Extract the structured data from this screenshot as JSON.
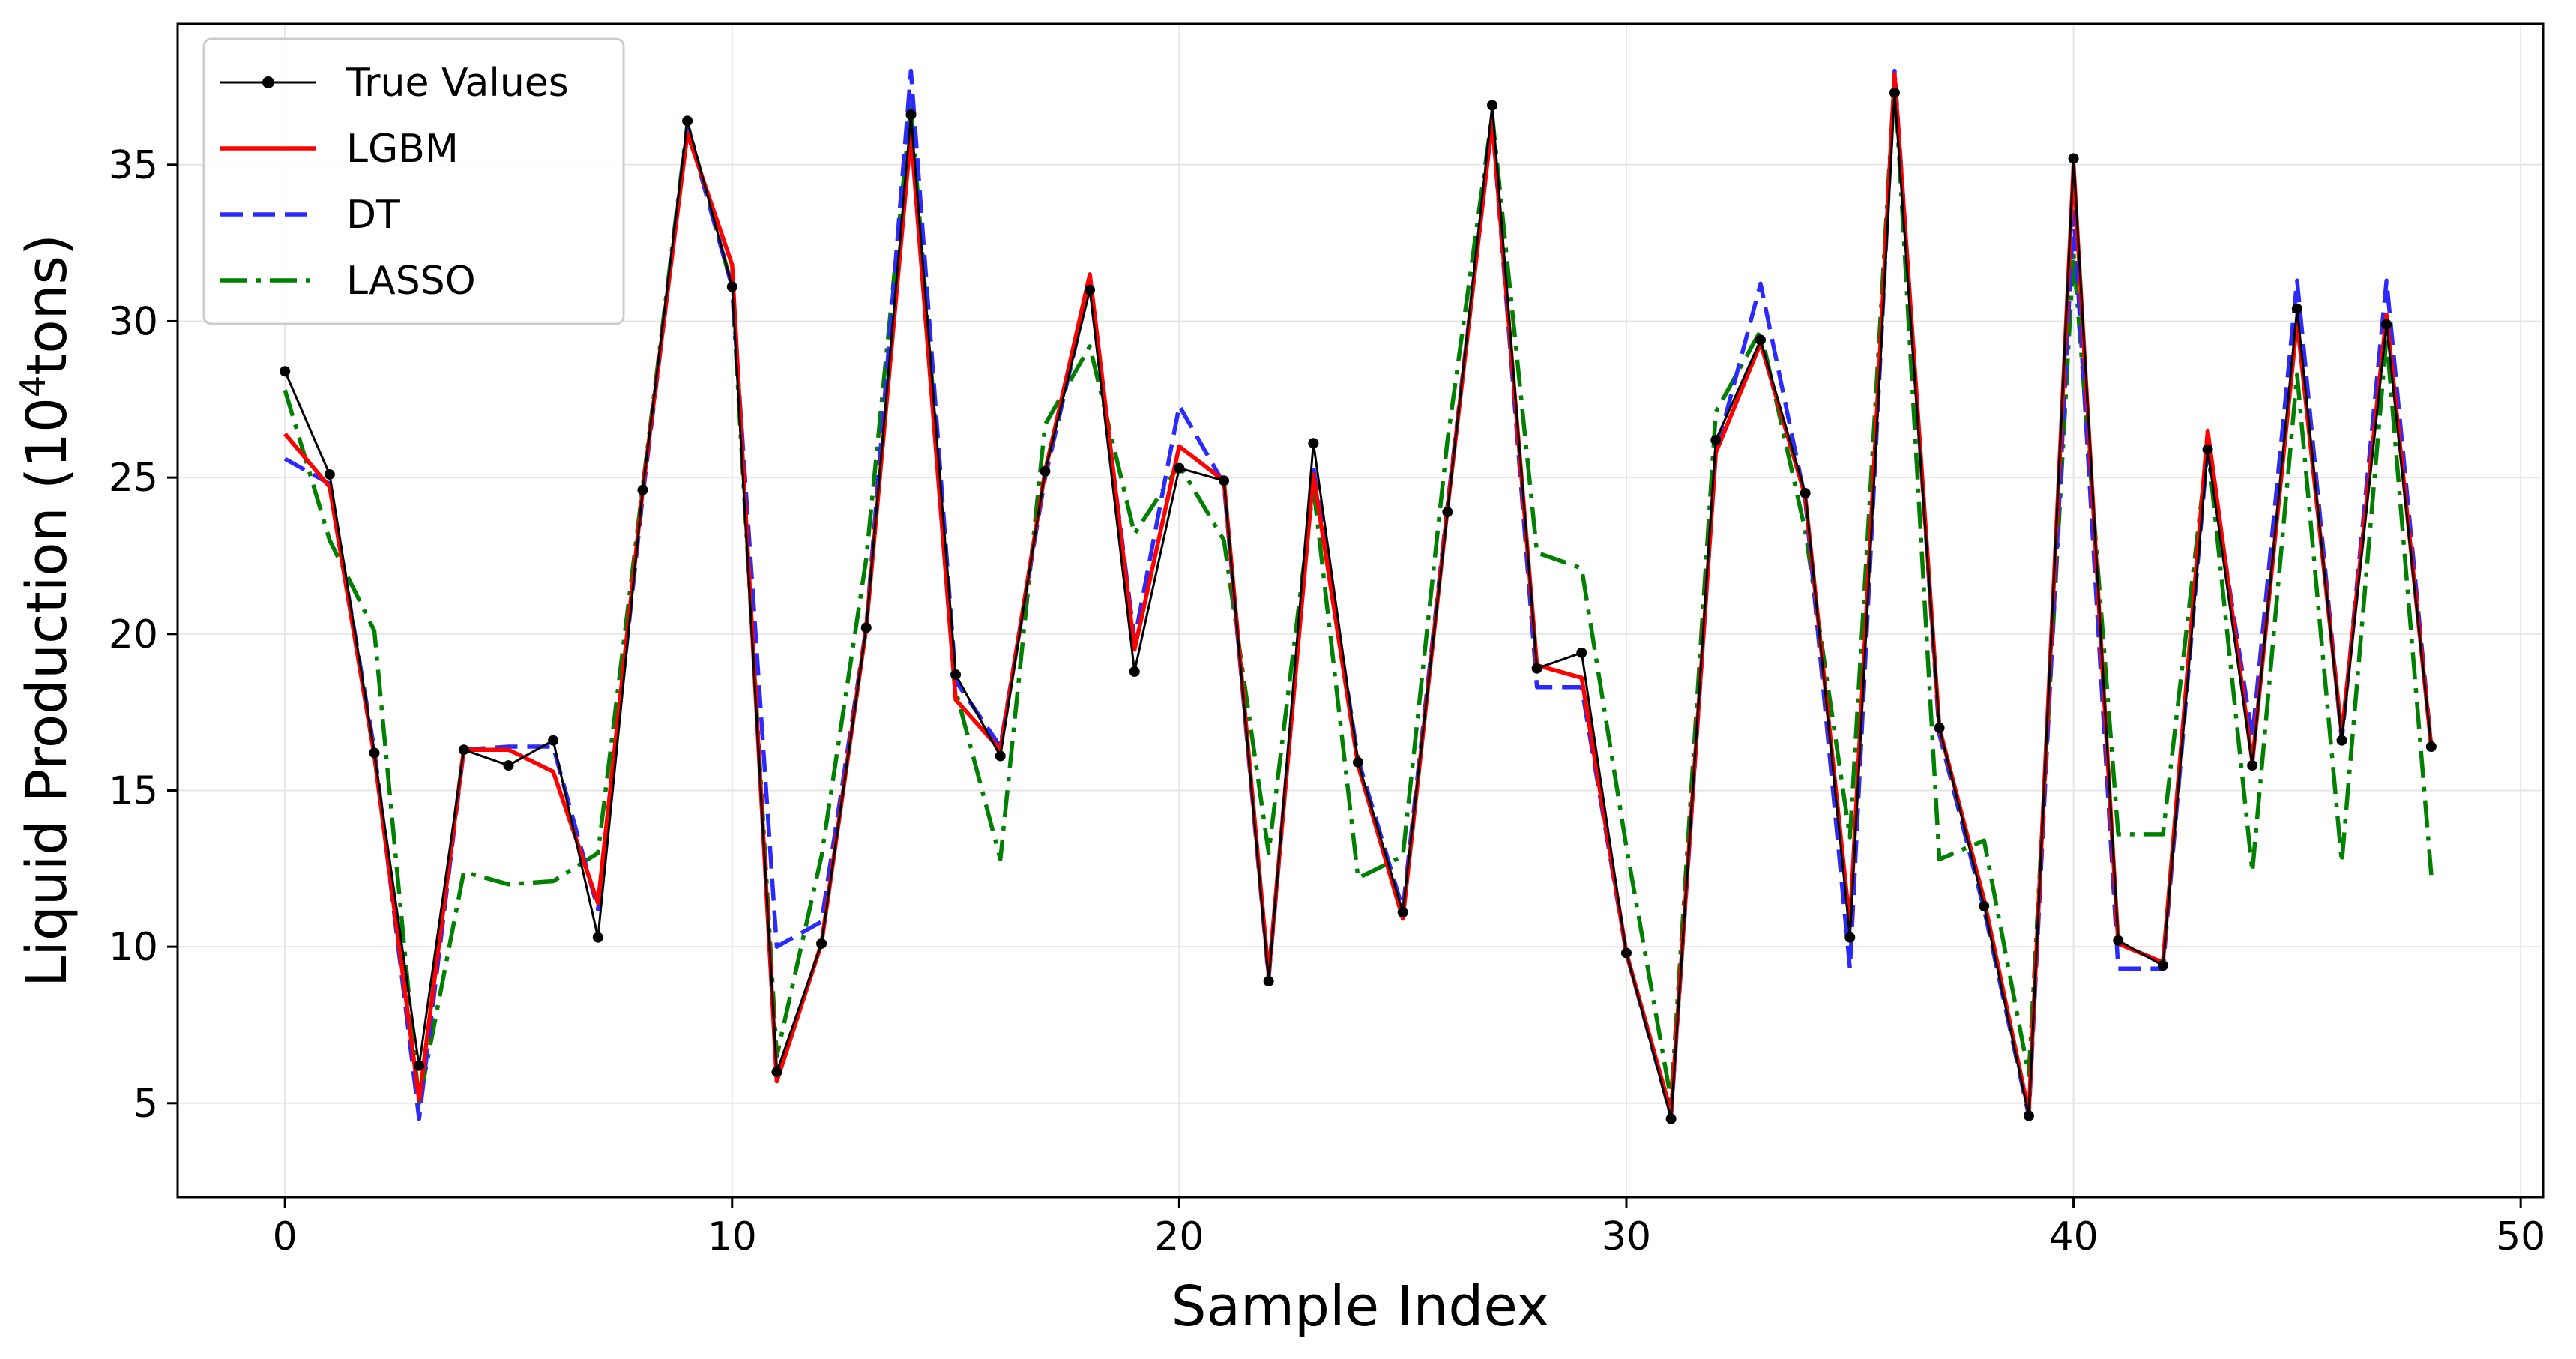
{
  "chart_data": {
    "type": "line",
    "title": "",
    "xlabel": "Sample Index",
    "ylabel_main": "Liquid Production (10",
    "ylabel_sup": "4",
    "ylabel_tail": "tons)",
    "xlim": [
      -2.4,
      50.5
    ],
    "ylim": [
      2.0,
      39.5
    ],
    "xticks": [
      0,
      10,
      20,
      30,
      40,
      50
    ],
    "yticks": [
      5,
      10,
      15,
      20,
      25,
      30,
      35
    ],
    "grid": true,
    "legend_position": "top-left",
    "x": [
      0,
      1,
      2,
      3,
      4,
      5,
      6,
      7,
      8,
      9,
      10,
      11,
      12,
      13,
      14,
      15,
      16,
      17,
      18,
      19,
      20,
      21,
      22,
      23,
      24,
      25,
      26,
      27,
      28,
      29,
      30,
      31,
      32,
      33,
      34,
      35,
      36,
      37,
      38,
      39,
      40,
      41,
      42,
      43,
      44,
      45,
      46,
      47,
      48
    ],
    "series": [
      {
        "name": "True Values",
        "color": "#000000",
        "style": "solid-markers",
        "values": [
          28.4,
          25.1,
          16.2,
          6.2,
          16.3,
          15.8,
          16.6,
          10.3,
          24.6,
          36.4,
          31.1,
          6.0,
          10.1,
          20.2,
          36.6,
          18.7,
          16.1,
          25.2,
          31.0,
          18.8,
          25.3,
          24.9,
          8.9,
          26.1,
          15.9,
          11.1,
          23.9,
          36.9,
          18.9,
          19.4,
          9.8,
          4.5,
          26.2,
          29.4,
          24.5,
          10.3,
          37.3,
          17.0,
          11.3,
          4.6,
          35.2,
          10.2,
          9.4,
          25.9,
          15.8,
          30.4,
          16.6,
          29.9,
          16.4
        ]
      },
      {
        "name": "LGBM",
        "color": "#ff0000",
        "style": "solid",
        "values": [
          26.4,
          24.7,
          16.1,
          5.1,
          16.3,
          16.3,
          15.6,
          11.4,
          24.6,
          36.0,
          31.8,
          5.7,
          10.1,
          20.2,
          36.0,
          17.9,
          16.3,
          25.2,
          31.5,
          19.5,
          26.0,
          24.9,
          9.1,
          25.1,
          15.8,
          10.9,
          24.0,
          36.4,
          19.0,
          18.6,
          9.8,
          4.7,
          25.8,
          29.3,
          24.4,
          10.7,
          37.9,
          17.0,
          11.5,
          4.7,
          35.0,
          10.1,
          9.5,
          26.5,
          15.9,
          30.0,
          16.8,
          30.2,
          16.4
        ]
      },
      {
        "name": "DT",
        "color": "#2a2aff",
        "style": "dashed",
        "values": [
          25.6,
          24.8,
          16.3,
          4.5,
          16.3,
          16.4,
          16.4,
          11.2,
          24.4,
          36.2,
          31.1,
          10.0,
          10.8,
          20.2,
          38.0,
          18.5,
          16.4,
          25.0,
          31.2,
          19.8,
          27.3,
          24.8,
          9.0,
          25.3,
          16.0,
          11.2,
          24.1,
          36.4,
          18.3,
          18.3,
          9.8,
          4.6,
          25.8,
          31.2,
          24.3,
          9.3,
          38.0,
          16.8,
          11.2,
          4.6,
          33.5,
          9.3,
          9.3,
          26.0,
          16.7,
          31.3,
          16.6,
          31.3,
          16.4
        ]
      },
      {
        "name": "LASSO",
        "color": "#008000",
        "style": "dashdot",
        "values": [
          27.8,
          23.0,
          20.1,
          5.0,
          12.4,
          12.0,
          12.1,
          13.0,
          24.7,
          36.3,
          31.1,
          6.5,
          12.9,
          22.4,
          36.9,
          18.2,
          12.8,
          26.7,
          29.2,
          23.2,
          25.4,
          23.0,
          13.0,
          24.7,
          12.2,
          12.9,
          26.2,
          36.6,
          22.6,
          22.1,
          13.2,
          5.1,
          27.1,
          29.7,
          23.3,
          13.5,
          37.8,
          12.8,
          13.4,
          5.9,
          32.2,
          13.6,
          13.6,
          26.0,
          12.4,
          28.3,
          12.7,
          29.5,
          12.3
        ]
      }
    ]
  }
}
